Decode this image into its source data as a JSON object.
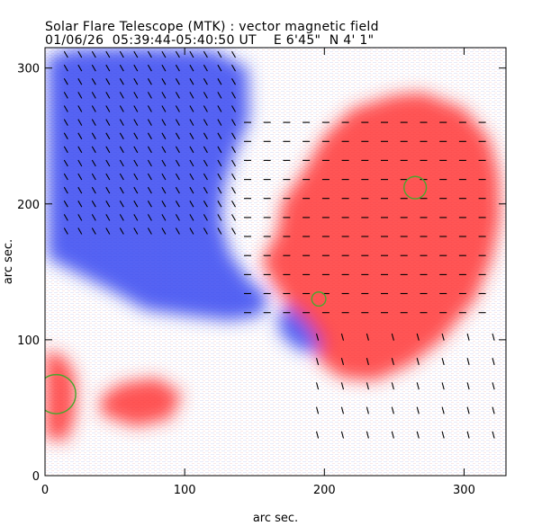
{
  "chart_data": {
    "type": "heatmap",
    "title": "Solar Flare Telescope (MTK) : vector magnetic field",
    "subtitle_date": "01/06/26",
    "subtitle_time": "05:39:44-05:40:50 UT",
    "subtitle_position": "E 6'45\"  N 4' 1\"",
    "xlabel": "arc sec.",
    "ylabel": "arc sec.",
    "xlim": [
      0,
      330
    ],
    "ylim": [
      0,
      315
    ],
    "xticks": [
      0,
      100,
      200,
      300
    ],
    "yticks": [
      0,
      100,
      200,
      300
    ],
    "colors": {
      "negative_polarity": "#2f3ff0",
      "positive_polarity": "#ff2d2d",
      "background": "#ffffff",
      "vectors": "#000000",
      "contours": "#4aa52e"
    },
    "polarity_regions": [
      {
        "name": "negative",
        "points": [
          [
            2,
            308
          ],
          [
            20,
            314
          ],
          [
            70,
            315
          ],
          [
            120,
            313
          ],
          [
            145,
            300
          ],
          [
            146,
            262
          ],
          [
            136,
            238
          ],
          [
            128,
            212
          ],
          [
            126,
            188
          ],
          [
            132,
            164
          ],
          [
            146,
            144
          ],
          [
            160,
            132
          ],
          [
            155,
            118
          ],
          [
            132,
            114
          ],
          [
            100,
            118
          ],
          [
            72,
            122
          ],
          [
            48,
            136
          ],
          [
            25,
            148
          ],
          [
            2,
            160
          ]
        ]
      },
      {
        "name": "negative",
        "points": [
          [
            175,
            128
          ],
          [
            190,
            118
          ],
          [
            202,
            100
          ],
          [
            198,
            90
          ],
          [
            183,
            92
          ],
          [
            170,
            102
          ],
          [
            166,
            116
          ]
        ]
      },
      {
        "name": "positive",
        "points": [
          [
            155,
            158
          ],
          [
            166,
            178
          ],
          [
            170,
            202
          ],
          [
            184,
            222
          ],
          [
            200,
            250
          ],
          [
            220,
            270
          ],
          [
            250,
            280
          ],
          [
            270,
            282
          ],
          [
            300,
            270
          ],
          [
            318,
            248
          ],
          [
            325,
            222
          ],
          [
            326,
            190
          ],
          [
            320,
            160
          ],
          [
            308,
            130
          ],
          [
            284,
            100
          ],
          [
            262,
            82
          ],
          [
            236,
            70
          ],
          [
            212,
            72
          ],
          [
            194,
            86
          ],
          [
            196,
            98
          ],
          [
            188,
            112
          ],
          [
            175,
            124
          ],
          [
            164,
            140
          ]
        ]
      },
      {
        "name": "positive",
        "points": [
          [
            0,
            28
          ],
          [
            15,
            25
          ],
          [
            22,
            45
          ],
          [
            22,
            72
          ],
          [
            14,
            88
          ],
          [
            0,
            92
          ]
        ]
      },
      {
        "name": "positive",
        "points": [
          [
            40,
            45
          ],
          [
            65,
            36
          ],
          [
            90,
            42
          ],
          [
            98,
            60
          ],
          [
            80,
            72
          ],
          [
            55,
            68
          ],
          [
            40,
            58
          ]
        ]
      }
    ],
    "sunspot_contours": [
      {
        "x": 265,
        "y": 212,
        "r": 8
      },
      {
        "x": 196,
        "y": 130,
        "r": 5
      },
      {
        "x": 8,
        "y": 60,
        "r": 14
      }
    ],
    "vector_field": [
      {
        "x": [
          15,
          140
        ],
        "y": [
          180,
          310
        ],
        "angle_deg": 120,
        "step": 10
      },
      {
        "x": [
          145,
          325
        ],
        "y": [
          120,
          270
        ],
        "angle_deg": 180,
        "step": 14
      },
      {
        "x": [
          195,
          330
        ],
        "y": [
          30,
          110
        ],
        "angle_deg": 105,
        "step": 18
      }
    ]
  }
}
